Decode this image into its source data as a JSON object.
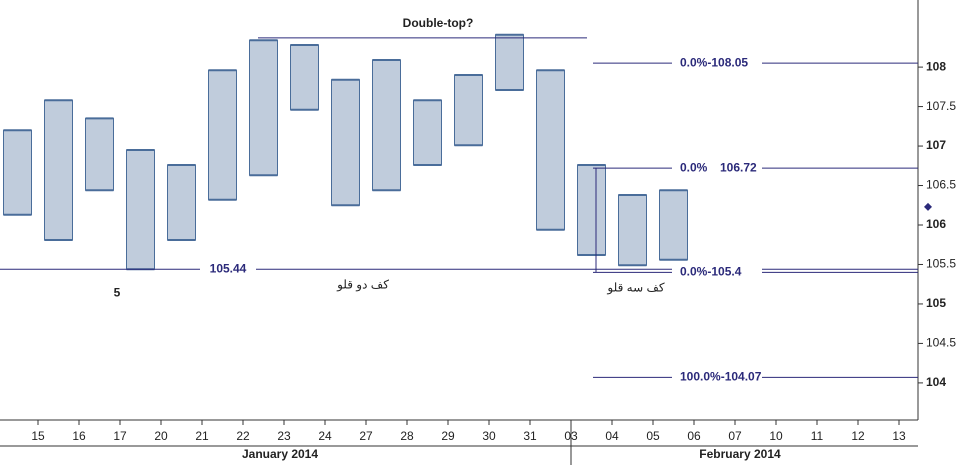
{
  "chart_data": {
    "type": "range-bar",
    "title": "Double-top?",
    "categories": [
      null,
      "15",
      "16",
      "17",
      "20",
      "21",
      "22",
      "23",
      "24",
      "27",
      "28",
      "29",
      "30",
      "31",
      "03",
      "04",
      "05",
      "06",
      "07",
      "10",
      "11",
      "12",
      "13"
    ],
    "months": [
      {
        "label": "January 2014",
        "from": 0
      },
      {
        "label": "February 2014",
        "from": 14
      }
    ],
    "series": [
      {
        "name": "high",
        "color": "#4a6d9a",
        "values": [
          107.2,
          107.58,
          107.35,
          106.95,
          106.76,
          107.96,
          108.34,
          108.28,
          107.84,
          108.09,
          107.58,
          107.9,
          108.41,
          107.96,
          106.76,
          106.38,
          106.44,
          null,
          null,
          null,
          null,
          null,
          null
        ]
      },
      {
        "name": "low",
        "color": "#4a6d9a",
        "values": [
          106.13,
          105.81,
          106.44,
          105.44,
          105.81,
          106.32,
          106.63,
          107.46,
          106.25,
          106.44,
          106.76,
          107.01,
          107.71,
          105.94,
          105.62,
          105.49,
          105.56,
          null,
          null,
          null,
          null,
          null,
          null
        ]
      }
    ],
    "ylim": [
      103.53,
      108.85
    ],
    "yticks": [
      104,
      104.5,
      105,
      105.5,
      106,
      106.5,
      107,
      107.5,
      108
    ],
    "last_price": 106.23,
    "support": {
      "value": 105.44,
      "note": "5",
      "caption": "کف دو قلو"
    },
    "double_top": 108.37,
    "fib_levels": [
      {
        "value": 108.05,
        "label": "0.0%-108.05"
      },
      {
        "value": 106.72,
        "label": "0.0%"
      },
      {
        "value": 105.4,
        "label": "0.0%-105.4",
        "caption": "کف سه قلو"
      },
      {
        "value": 104.07,
        "label": "100.0%-104.07"
      }
    ],
    "line_color": "#2b2a7a"
  }
}
